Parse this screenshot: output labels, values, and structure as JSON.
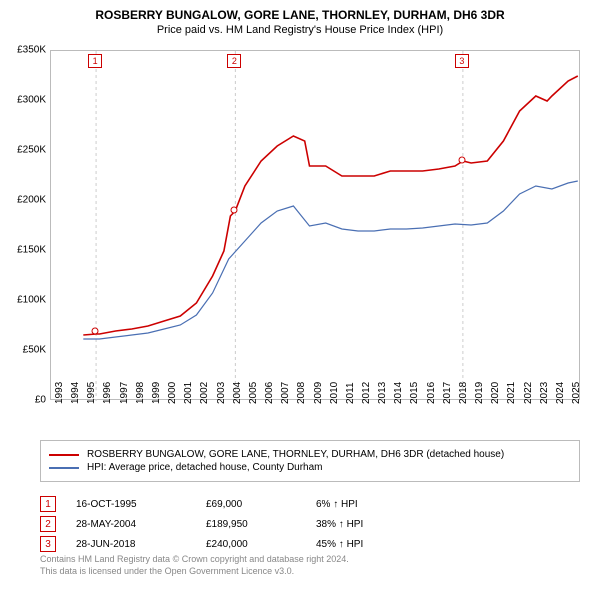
{
  "title": {
    "line1": "ROSBERRY BUNGALOW, GORE LANE, THORNLEY, DURHAM, DH6 3DR",
    "line2": "Price paid vs. HM Land Registry's House Price Index (HPI)"
  },
  "chart": {
    "type": "line",
    "background": "#ffffff",
    "border_color": "#bbbbbb",
    "grid_color": "#e6e6e6",
    "x_range": [
      1993,
      2025.8
    ],
    "x_ticks": [
      1993,
      1994,
      1995,
      1996,
      1997,
      1998,
      1999,
      2000,
      2001,
      2002,
      2003,
      2004,
      2005,
      2006,
      2007,
      2008,
      2009,
      2010,
      2011,
      2012,
      2013,
      2014,
      2015,
      2016,
      2017,
      2018,
      2019,
      2020,
      2021,
      2022,
      2023,
      2024,
      2025
    ],
    "x_tick_labels": [
      "1993",
      "1994",
      "1995",
      "1996",
      "1997",
      "1998",
      "1999",
      "2000",
      "2001",
      "2002",
      "2003",
      "2004",
      "2005",
      "2006",
      "2007",
      "2008",
      "2009",
      "2010",
      "2011",
      "2012",
      "2013",
      "2014",
      "2015",
      "2016",
      "2017",
      "2018",
      "2019",
      "2020",
      "2021",
      "2022",
      "2023",
      "2024",
      "2025"
    ],
    "y_range_k": [
      0,
      350
    ],
    "y_ticks_k": [
      0,
      50,
      100,
      150,
      200,
      250,
      300,
      350
    ],
    "y_tick_labels": [
      "£0",
      "£50K",
      "£100K",
      "£150K",
      "£200K",
      "£250K",
      "£300K",
      "£350K"
    ],
    "tick_fontsize": 10,
    "series": [
      {
        "name": "ROSBERRY BUNGALOW, GORE LANE, THORNLEY, DURHAM, DH6 3DR (detached house)",
        "color": "#cc0000",
        "line_width": 1.6,
        "data": [
          [
            1995,
            66
          ],
          [
            1995.8,
            67
          ],
          [
            1996,
            67
          ],
          [
            1997,
            70
          ],
          [
            1998,
            72
          ],
          [
            1999,
            75
          ],
          [
            2000,
            80
          ],
          [
            2001,
            85
          ],
          [
            2002,
            98
          ],
          [
            2003,
            125
          ],
          [
            2003.7,
            150
          ],
          [
            2004.1,
            185
          ],
          [
            2004.4,
            190
          ],
          [
            2005,
            215
          ],
          [
            2006,
            240
          ],
          [
            2007,
            255
          ],
          [
            2008,
            265
          ],
          [
            2008.7,
            260
          ],
          [
            2009,
            235
          ],
          [
            2010,
            235
          ],
          [
            2011,
            225
          ],
          [
            2012,
            225
          ],
          [
            2013,
            225
          ],
          [
            2014,
            230
          ],
          [
            2015,
            230
          ],
          [
            2016,
            230
          ],
          [
            2017,
            232
          ],
          [
            2018,
            235
          ],
          [
            2018.5,
            240
          ],
          [
            2019,
            238
          ],
          [
            2020,
            240
          ],
          [
            2021,
            260
          ],
          [
            2022,
            290
          ],
          [
            2023,
            305
          ],
          [
            2023.7,
            300
          ],
          [
            2024,
            305
          ],
          [
            2025,
            320
          ],
          [
            2025.6,
            325
          ]
        ]
      },
      {
        "name": "HPI: Average price, detached house, County Durham",
        "color": "#4a6fb3",
        "line_width": 1.2,
        "data": [
          [
            1995,
            62
          ],
          [
            1996,
            62
          ],
          [
            1997,
            64
          ],
          [
            1998,
            66
          ],
          [
            1999,
            68
          ],
          [
            2000,
            72
          ],
          [
            2001,
            76
          ],
          [
            2002,
            86
          ],
          [
            2003,
            108
          ],
          [
            2004,
            142
          ],
          [
            2005,
            160
          ],
          [
            2006,
            178
          ],
          [
            2007,
            190
          ],
          [
            2008,
            195
          ],
          [
            2009,
            175
          ],
          [
            2010,
            178
          ],
          [
            2011,
            172
          ],
          [
            2012,
            170
          ],
          [
            2013,
            170
          ],
          [
            2014,
            172
          ],
          [
            2015,
            172
          ],
          [
            2016,
            173
          ],
          [
            2017,
            175
          ],
          [
            2018,
            177
          ],
          [
            2019,
            176
          ],
          [
            2020,
            178
          ],
          [
            2021,
            190
          ],
          [
            2022,
            207
          ],
          [
            2023,
            215
          ],
          [
            2024,
            212
          ],
          [
            2025,
            218
          ],
          [
            2025.6,
            220
          ]
        ]
      }
    ],
    "markers": [
      {
        "n": "1",
        "x": 1995.79,
        "y_k": 69,
        "line_color": "#cccccc"
      },
      {
        "n": "2",
        "x": 2004.41,
        "y_k": 189.95,
        "line_color": "#cccccc"
      },
      {
        "n": "3",
        "x": 2018.49,
        "y_k": 240,
        "line_color": "#cccccc"
      }
    ]
  },
  "legend": {
    "items": [
      {
        "color": "#cc0000",
        "label": "ROSBERRY BUNGALOW, GORE LANE, THORNLEY, DURHAM, DH6 3DR (detached house)"
      },
      {
        "color": "#4a6fb3",
        "label": "HPI: Average price, detached house, County Durham"
      }
    ]
  },
  "sales": [
    {
      "n": "1",
      "date": "16-OCT-1995",
      "price": "£69,000",
      "delta": "6% ↑ HPI"
    },
    {
      "n": "2",
      "date": "28-MAY-2004",
      "price": "£189,950",
      "delta": "38% ↑ HPI"
    },
    {
      "n": "3",
      "date": "28-JUN-2018",
      "price": "£240,000",
      "delta": "45% ↑ HPI"
    }
  ],
  "footer": {
    "line1": "Contains HM Land Registry data © Crown copyright and database right 2024.",
    "line2": "This data is licensed under the Open Government Licence v3.0."
  },
  "colors": {
    "accent": "#cc0000",
    "footer_text": "#888888"
  }
}
